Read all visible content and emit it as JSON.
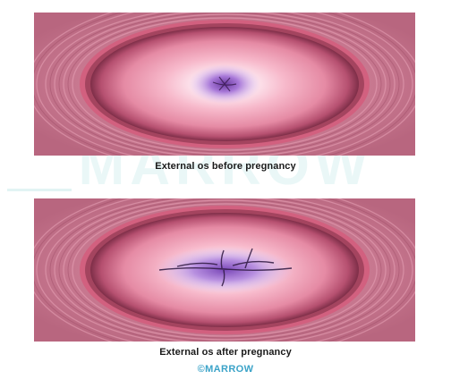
{
  "watermark": {
    "text": "MARROW"
  },
  "figures": [
    {
      "caption": "External os before pregnancy",
      "os_shape": "circular"
    },
    {
      "caption": "External os after pregnancy",
      "os_shape": "transverse-slit"
    }
  ],
  "brand": {
    "text": "©MARROW"
  },
  "colors": {
    "tissue_outer": "#c27a90",
    "tissue_ring": "#d2607f",
    "cervix_surface": "#f2a9c0",
    "cervix_center": "#ffffff",
    "os_purple": "#a070c8"
  }
}
